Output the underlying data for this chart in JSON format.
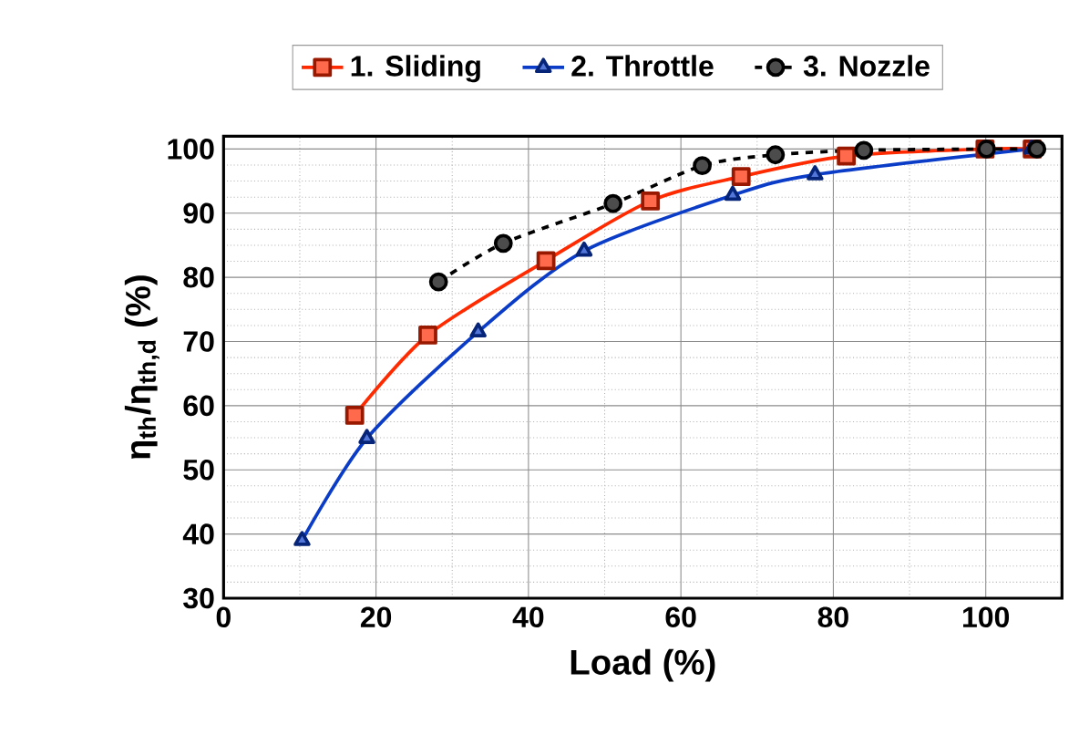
{
  "chart_data": {
    "type": "line",
    "xlabel": "Load (%)",
    "ylabel": "η$_{th}$/η$_{th,d}$ (%)",
    "xlim": [
      0,
      110
    ],
    "xticks": [
      0,
      20,
      40,
      60,
      80,
      100
    ],
    "ylim": [
      30,
      102
    ],
    "yticks": [
      30,
      40,
      50,
      60,
      70,
      80,
      90,
      100
    ],
    "grid": true,
    "legend": "top",
    "series": [
      {
        "name": "1. Sliding",
        "color": "#ff2a00",
        "marker": "square",
        "line_style": "solid",
        "x": [
          17.2,
          26.8,
          42.3,
          56.0,
          67.9,
          81.7,
          99.9,
          106.1
        ],
        "values": [
          58.5,
          71.0,
          82.6,
          91.9,
          95.7,
          98.9,
          100,
          100
        ]
      },
      {
        "name": "2. Throttle",
        "color": "#0a3cc8",
        "marker": "triangle",
        "line_style": "solid",
        "x": [
          10.3,
          18.8,
          33.4,
          47.3,
          66.8,
          77.6,
          106.0
        ],
        "values": [
          39.0,
          54.9,
          71.5,
          84.1,
          92.8,
          96.0,
          100
        ]
      },
      {
        "name": "3. Nozzle",
        "color": "#000000",
        "marker": "circle",
        "line_style": "dashed",
        "x": [
          28.2,
          36.7,
          51.1,
          62.8,
          72.4,
          84.0,
          100.1,
          106.7
        ],
        "values": [
          79.3,
          85.3,
          91.5,
          97.4,
          99.1,
          99.8,
          100,
          100
        ]
      }
    ]
  }
}
